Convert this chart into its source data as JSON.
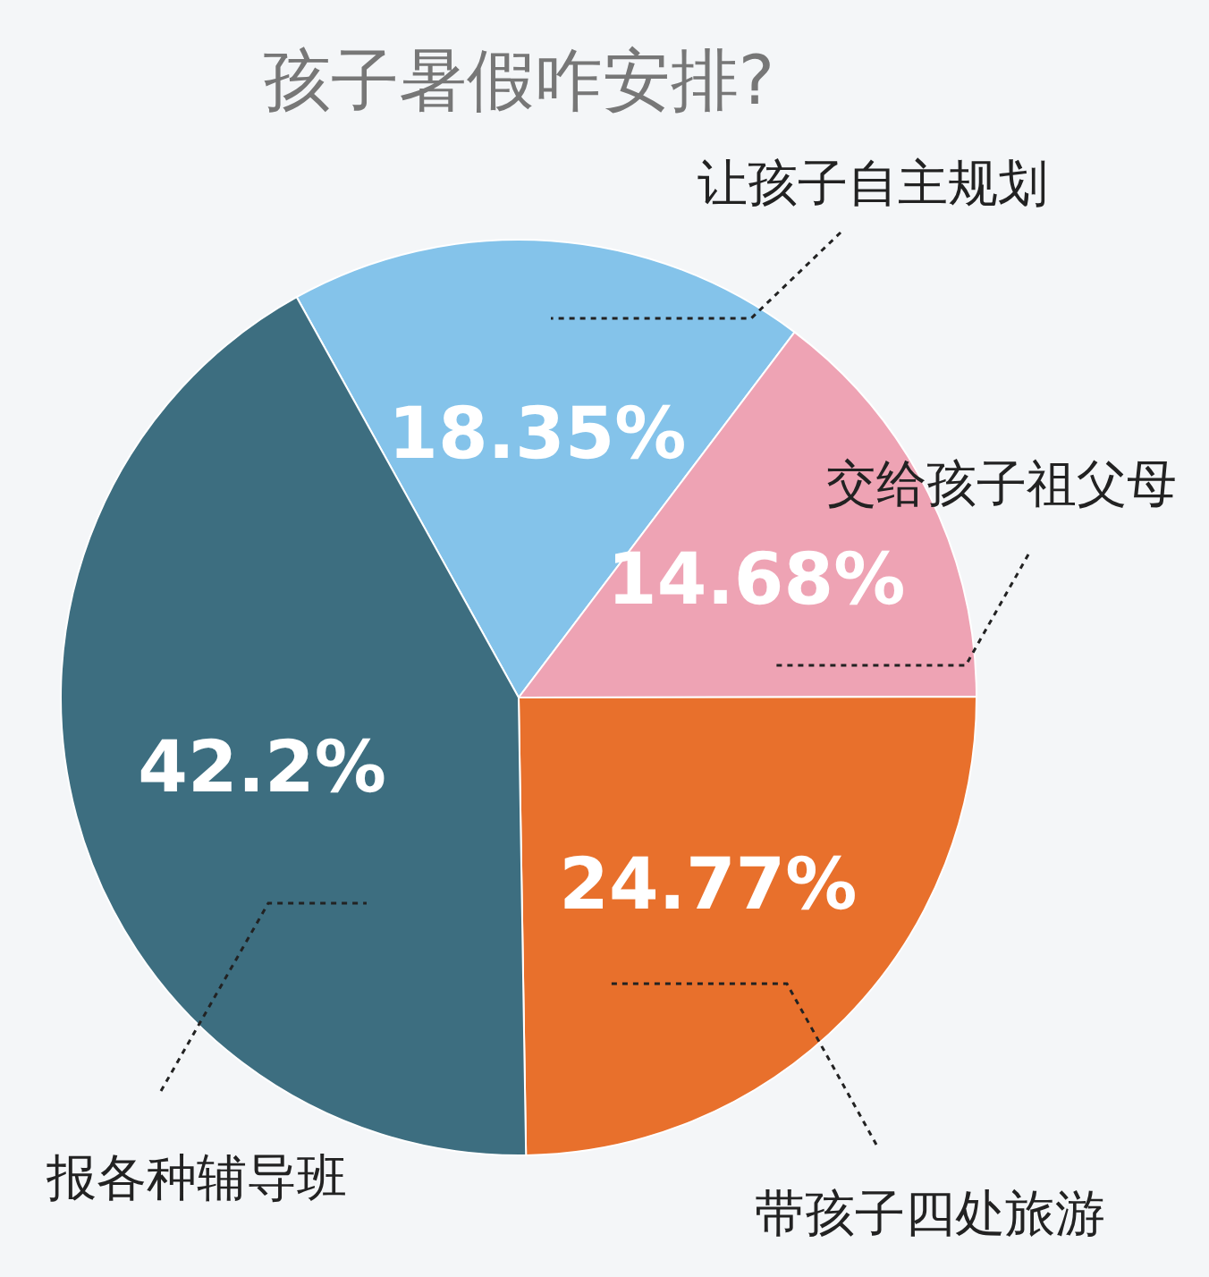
{
  "chart_data": {
    "type": "pie",
    "title": "孩子暑假咋安排?",
    "categories": [
      "让孩子自主规划",
      "交给孩子祖父母",
      "带孩子四处旅游",
      "报各种辅导班"
    ],
    "values": [
      18.35,
      14.68,
      24.77,
      42.2
    ],
    "value_labels": [
      "18.35%",
      "14.68%",
      "24.77%",
      "42.2%"
    ],
    "colors": [
      "#84c3ea",
      "#eea3b4",
      "#e8702c",
      "#3d6e80"
    ]
  }
}
